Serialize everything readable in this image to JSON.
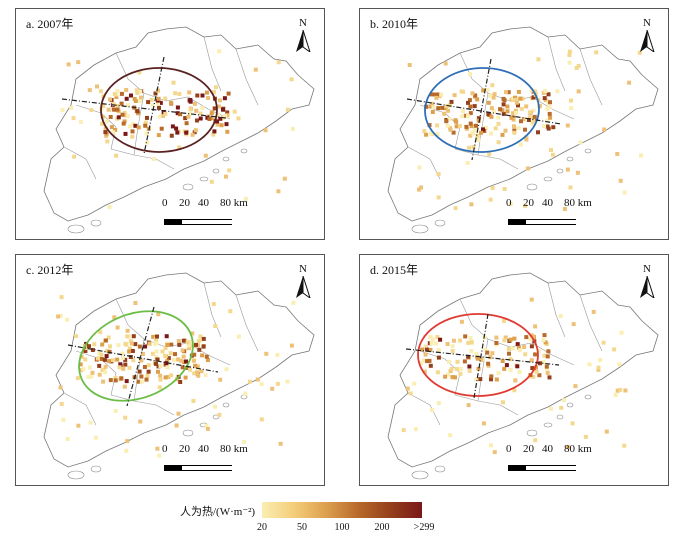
{
  "panels": [
    {
      "title": "a. 2007年",
      "ellipse_color": "#5a2121"
    },
    {
      "title": "b. 2010年",
      "ellipse_color": "#2f6fb6"
    },
    {
      "title": "c. 2012年",
      "ellipse_color": "#6cbd45"
    },
    {
      "title": "d. 2015年",
      "ellipse_color": "#e03a33"
    }
  ],
  "north_label": "N",
  "scale": {
    "labels": [
      "0",
      "20",
      "40",
      "80 km"
    ]
  },
  "legend": {
    "title": "人为热/(W·m⁻²)",
    "ticks": [
      "20",
      "50",
      "100",
      "200",
      ">299"
    ]
  }
}
